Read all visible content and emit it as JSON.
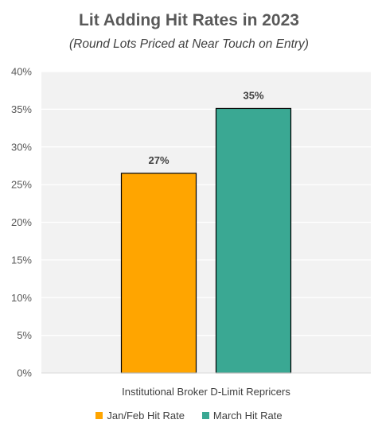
{
  "chart_data": {
    "type": "bar",
    "title": "Lit Adding Hit Rates in 2023",
    "subtitle": "(Round Lots Priced at Near Touch on Entry)",
    "categories": [
      "Institutional Broker D-Limit Repricers"
    ],
    "series": [
      {
        "name": "Jan/Feb Hit Rate",
        "values": [
          26.5
        ],
        "data_label": "27%",
        "color": "#FFA500"
      },
      {
        "name": "March Hit Rate",
        "values": [
          35.1
        ],
        "data_label": "35%",
        "color": "#3AA893"
      }
    ],
    "ylim": [
      0,
      40
    ],
    "yticks": [
      "0%",
      "5%",
      "10%",
      "15%",
      "20%",
      "25%",
      "30%",
      "35%",
      "40%"
    ],
    "ytick_values": [
      0,
      5,
      10,
      15,
      20,
      25,
      30,
      35,
      40
    ],
    "grid": true,
    "legend": "bottom"
  }
}
